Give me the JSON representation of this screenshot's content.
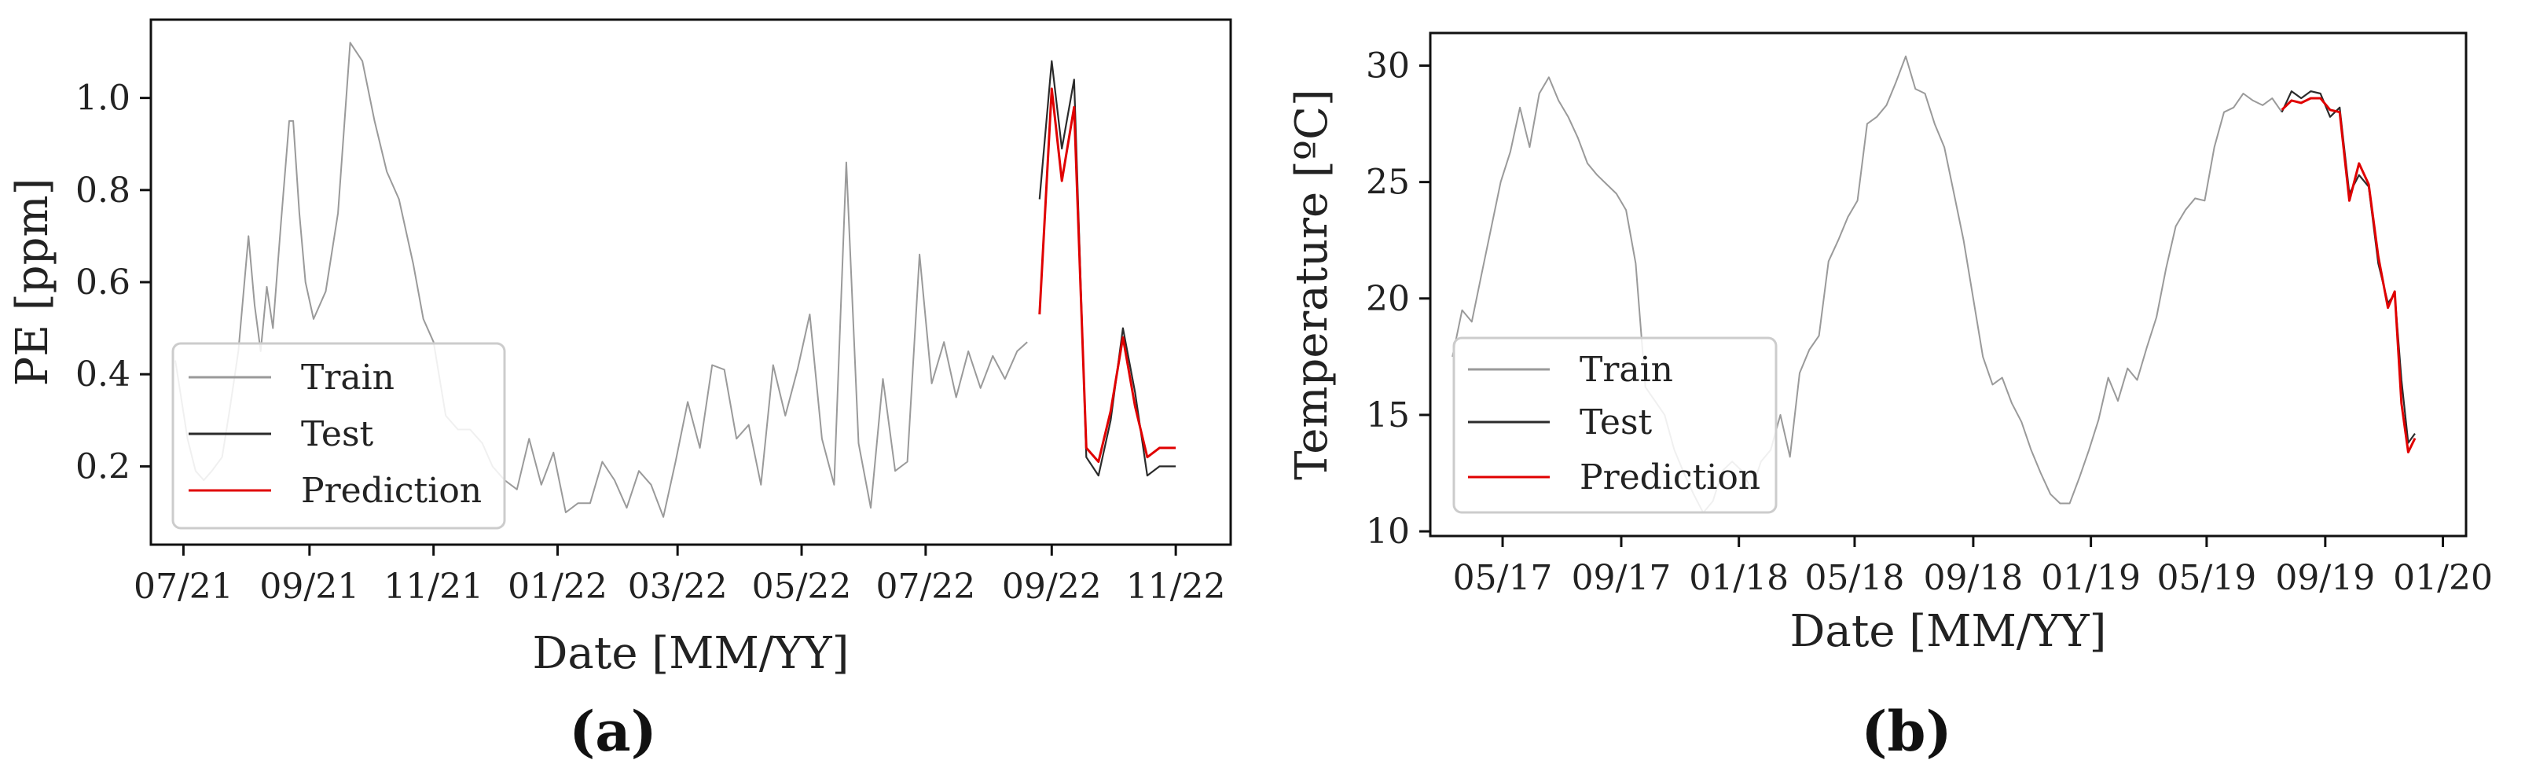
{
  "colors": {
    "train": "#9a9a9a",
    "test": "#2b2b2b",
    "prediction": "#e00000"
  },
  "chart_data": [
    {
      "type": "line",
      "panel_label": "(a)",
      "xlabel": "Date [MM/YY]",
      "ylabel": "PE [ppm]",
      "xlim": [
        "2021-06-15",
        "2022-11-28"
      ],
      "ylim": [
        0.03,
        1.17
      ],
      "xticks": [
        {
          "date": "2021-07-01",
          "label": "07/21"
        },
        {
          "date": "2021-09-01",
          "label": "09/21"
        },
        {
          "date": "2021-11-01",
          "label": "11/21"
        },
        {
          "date": "2022-01-01",
          "label": "01/22"
        },
        {
          "date": "2022-03-01",
          "label": "03/22"
        },
        {
          "date": "2022-05-01",
          "label": "05/22"
        },
        {
          "date": "2022-07-01",
          "label": "07/22"
        },
        {
          "date": "2022-09-01",
          "label": "09/22"
        },
        {
          "date": "2022-11-01",
          "label": "11/22"
        }
      ],
      "yticks": [
        {
          "value": 0.2,
          "label": "0.2"
        },
        {
          "value": 0.4,
          "label": "0.4"
        },
        {
          "value": 0.6,
          "label": "0.6"
        },
        {
          "value": 0.8,
          "label": "0.8"
        },
        {
          "value": 1.0,
          "label": "1.0"
        }
      ],
      "legend": {
        "placement": "lower-left",
        "entries": [
          "Train",
          "Test",
          "Prediction"
        ]
      },
      "series": [
        {
          "name": "Train",
          "x": [
            "2021-06-27",
            "2021-07-03",
            "2021-07-07",
            "2021-07-11",
            "2021-07-15",
            "2021-07-20",
            "2021-07-24",
            "2021-07-28",
            "2021-08-02",
            "2021-08-05",
            "2021-08-08",
            "2021-08-11",
            "2021-08-14",
            "2021-08-18",
            "2021-08-22",
            "2021-08-24",
            "2021-08-27",
            "2021-08-30",
            "2021-09-03",
            "2021-09-09",
            "2021-09-15",
            "2021-09-21",
            "2021-09-27",
            "2021-10-03",
            "2021-10-09",
            "2021-10-15",
            "2021-10-22",
            "2021-10-27",
            "2021-11-01",
            "2021-11-07",
            "2021-11-13",
            "2021-11-19",
            "2021-11-25",
            "2021-11-30",
            "2021-12-06",
            "2021-12-12",
            "2021-12-18",
            "2021-12-24",
            "2021-12-30",
            "2022-01-05",
            "2022-01-11",
            "2022-01-17",
            "2022-01-23",
            "2022-01-29",
            "2022-02-04",
            "2022-02-10",
            "2022-02-16",
            "2022-02-22",
            "2022-02-28",
            "2022-03-06",
            "2022-03-12",
            "2022-03-18",
            "2022-03-24",
            "2022-03-30",
            "2022-04-05",
            "2022-04-11",
            "2022-04-17",
            "2022-04-23",
            "2022-04-29",
            "2022-05-05",
            "2022-05-11",
            "2022-05-17",
            "2022-05-23",
            "2022-05-29",
            "2022-06-04",
            "2022-06-10",
            "2022-06-16",
            "2022-06-22",
            "2022-06-28",
            "2022-07-04",
            "2022-07-10",
            "2022-07-16",
            "2022-07-22",
            "2022-07-28",
            "2022-08-03",
            "2022-08-09",
            "2022-08-15",
            "2022-08-20"
          ],
          "y": [
            0.43,
            0.26,
            0.19,
            0.17,
            0.19,
            0.22,
            0.33,
            0.45,
            0.7,
            0.55,
            0.45,
            0.59,
            0.5,
            0.73,
            0.95,
            0.95,
            0.75,
            0.6,
            0.52,
            0.58,
            0.75,
            1.12,
            1.08,
            0.95,
            0.84,
            0.78,
            0.64,
            0.52,
            0.47,
            0.31,
            0.28,
            0.28,
            0.25,
            0.2,
            0.17,
            0.15,
            0.26,
            0.16,
            0.23,
            0.1,
            0.12,
            0.12,
            0.21,
            0.17,
            0.11,
            0.19,
            0.16,
            0.09,
            0.21,
            0.34,
            0.24,
            0.42,
            0.41,
            0.26,
            0.29,
            0.16,
            0.42,
            0.31,
            0.41,
            0.53,
            0.26,
            0.16,
            0.86,
            0.25,
            0.11,
            0.39,
            0.19,
            0.21,
            0.66,
            0.38,
            0.47,
            0.35,
            0.45,
            0.37,
            0.44,
            0.39,
            0.45,
            0.47
          ]
        },
        {
          "name": "Test",
          "x": [
            "2022-08-26",
            "2022-09-01",
            "2022-09-06",
            "2022-09-12",
            "2022-09-18",
            "2022-09-24",
            "2022-09-30",
            "2022-10-06",
            "2022-10-12",
            "2022-10-18",
            "2022-10-24",
            "2022-10-30",
            "2022-11-01"
          ],
          "y": [
            0.78,
            1.08,
            0.89,
            1.04,
            0.22,
            0.18,
            0.3,
            0.5,
            0.36,
            0.18,
            0.2,
            0.2,
            0.2
          ]
        },
        {
          "name": "Prediction",
          "x": [
            "2022-08-26",
            "2022-09-01",
            "2022-09-06",
            "2022-09-12",
            "2022-09-18",
            "2022-09-24",
            "2022-09-30",
            "2022-10-06",
            "2022-10-12",
            "2022-10-18",
            "2022-10-24",
            "2022-10-30",
            "2022-11-01"
          ],
          "y": [
            0.53,
            1.02,
            0.82,
            0.98,
            0.24,
            0.21,
            0.32,
            0.48,
            0.33,
            0.22,
            0.24,
            0.24,
            0.24
          ]
        }
      ]
    },
    {
      "type": "line",
      "panel_label": "(b)",
      "xlabel": "Date [MM/YY]",
      "ylabel": "Temperature [ºC]",
      "xlim": [
        "2017-02-15",
        "2020-01-25"
      ],
      "ylim": [
        9.8,
        31.4
      ],
      "xticks": [
        {
          "date": "2017-05-01",
          "label": "05/17"
        },
        {
          "date": "2017-09-01",
          "label": "09/17"
        },
        {
          "date": "2018-01-01",
          "label": "01/18"
        },
        {
          "date": "2018-05-01",
          "label": "05/18"
        },
        {
          "date": "2018-09-01",
          "label": "09/18"
        },
        {
          "date": "2019-01-01",
          "label": "01/19"
        },
        {
          "date": "2019-05-01",
          "label": "05/19"
        },
        {
          "date": "2019-09-01",
          "label": "09/19"
        },
        {
          "date": "2020-01-01",
          "label": "01/20"
        }
      ],
      "yticks": [
        {
          "value": 10,
          "label": "10"
        },
        {
          "value": 15,
          "label": "15"
        },
        {
          "value": 20,
          "label": "20"
        },
        {
          "value": 25,
          "label": "25"
        },
        {
          "value": 30,
          "label": "30"
        }
      ],
      "legend": {
        "placement": "lower-left",
        "entries": [
          "Train",
          "Test",
          "Prediction"
        ]
      },
      "series": [
        {
          "name": "Train",
          "x": [
            "2017-03-10",
            "2017-03-20",
            "2017-03-30",
            "2017-04-09",
            "2017-04-19",
            "2017-04-29",
            "2017-05-09",
            "2017-05-19",
            "2017-05-29",
            "2017-06-08",
            "2017-06-18",
            "2017-06-28",
            "2017-07-08",
            "2017-07-18",
            "2017-07-28",
            "2017-08-07",
            "2017-08-17",
            "2017-08-27",
            "2017-09-06",
            "2017-09-16",
            "2017-09-26",
            "2017-10-06",
            "2017-10-16",
            "2017-10-26",
            "2017-11-05",
            "2017-11-15",
            "2017-11-25",
            "2017-12-05",
            "2017-12-15",
            "2017-12-25",
            "2018-01-04",
            "2018-01-14",
            "2018-01-24",
            "2018-02-03",
            "2018-02-13",
            "2018-02-23",
            "2018-03-05",
            "2018-03-15",
            "2018-03-25",
            "2018-04-04",
            "2018-04-14",
            "2018-04-24",
            "2018-05-04",
            "2018-05-14",
            "2018-05-24",
            "2018-06-03",
            "2018-06-13",
            "2018-06-23",
            "2018-07-03",
            "2018-07-13",
            "2018-07-23",
            "2018-08-02",
            "2018-08-12",
            "2018-08-22",
            "2018-09-01",
            "2018-09-11",
            "2018-09-21",
            "2018-10-01",
            "2018-10-11",
            "2018-10-21",
            "2018-10-31",
            "2018-11-10",
            "2018-11-20",
            "2018-11-30",
            "2018-12-10",
            "2018-12-20",
            "2018-12-30",
            "2019-01-09",
            "2019-01-19",
            "2019-01-29",
            "2019-02-08",
            "2019-02-18",
            "2019-02-28",
            "2019-03-10",
            "2019-03-20",
            "2019-03-30",
            "2019-04-09",
            "2019-04-19",
            "2019-04-29",
            "2019-05-09",
            "2019-05-19",
            "2019-05-29",
            "2019-06-08",
            "2019-06-18",
            "2019-06-28",
            "2019-07-08",
            "2019-07-18"
          ],
          "y": [
            17.5,
            19.5,
            19.0,
            21.0,
            23.0,
            25.0,
            26.3,
            28.2,
            26.5,
            28.8,
            29.5,
            28.5,
            27.8,
            26.9,
            25.8,
            25.3,
            24.9,
            24.5,
            23.8,
            21.5,
            16.2,
            15.6,
            15.0,
            13.5,
            12.5,
            11.6,
            10.8,
            11.3,
            12.6,
            13.0,
            12.6,
            11.8,
            13.0,
            13.5,
            15.0,
            13.2,
            16.8,
            17.8,
            18.4,
            21.6,
            22.5,
            23.5,
            24.2,
            27.5,
            27.8,
            28.3,
            29.3,
            30.4,
            29.0,
            28.8,
            27.5,
            26.5,
            24.5,
            22.5,
            20.0,
            17.5,
            16.3,
            16.6,
            15.5,
            14.7,
            13.5,
            12.5,
            11.6,
            11.2,
            11.2,
            12.3,
            13.5,
            14.8,
            16.6,
            15.6,
            17.0,
            16.5,
            17.9,
            19.2,
            21.3,
            23.1,
            23.8,
            24.3,
            24.2,
            26.5,
            28.0,
            28.2,
            28.8,
            28.5,
            28.3,
            28.6,
            28.0
          ]
        },
        {
          "name": "Test",
          "x": [
            "2019-07-18",
            "2019-07-28",
            "2019-08-07",
            "2019-08-17",
            "2019-08-27",
            "2019-09-06",
            "2019-09-16",
            "2019-09-26",
            "2019-10-06",
            "2019-10-16",
            "2019-10-26",
            "2019-11-05",
            "2019-11-12",
            "2019-11-19",
            "2019-11-26",
            "2019-12-03"
          ],
          "y": [
            28.0,
            28.9,
            28.6,
            28.9,
            28.8,
            27.8,
            28.2,
            24.5,
            25.3,
            24.8,
            21.5,
            19.8,
            20.2,
            16.5,
            13.8,
            14.2
          ]
        },
        {
          "name": "Prediction",
          "x": [
            "2019-07-18",
            "2019-07-28",
            "2019-08-07",
            "2019-08-17",
            "2019-08-27",
            "2019-09-06",
            "2019-09-16",
            "2019-09-26",
            "2019-10-06",
            "2019-10-16",
            "2019-10-26",
            "2019-11-05",
            "2019-11-12",
            "2019-11-19",
            "2019-11-26",
            "2019-12-03"
          ],
          "y": [
            28.1,
            28.5,
            28.4,
            28.6,
            28.6,
            28.1,
            28.0,
            24.2,
            25.8,
            24.9,
            21.8,
            19.6,
            20.3,
            15.5,
            13.4,
            14.0
          ]
        }
      ]
    }
  ]
}
